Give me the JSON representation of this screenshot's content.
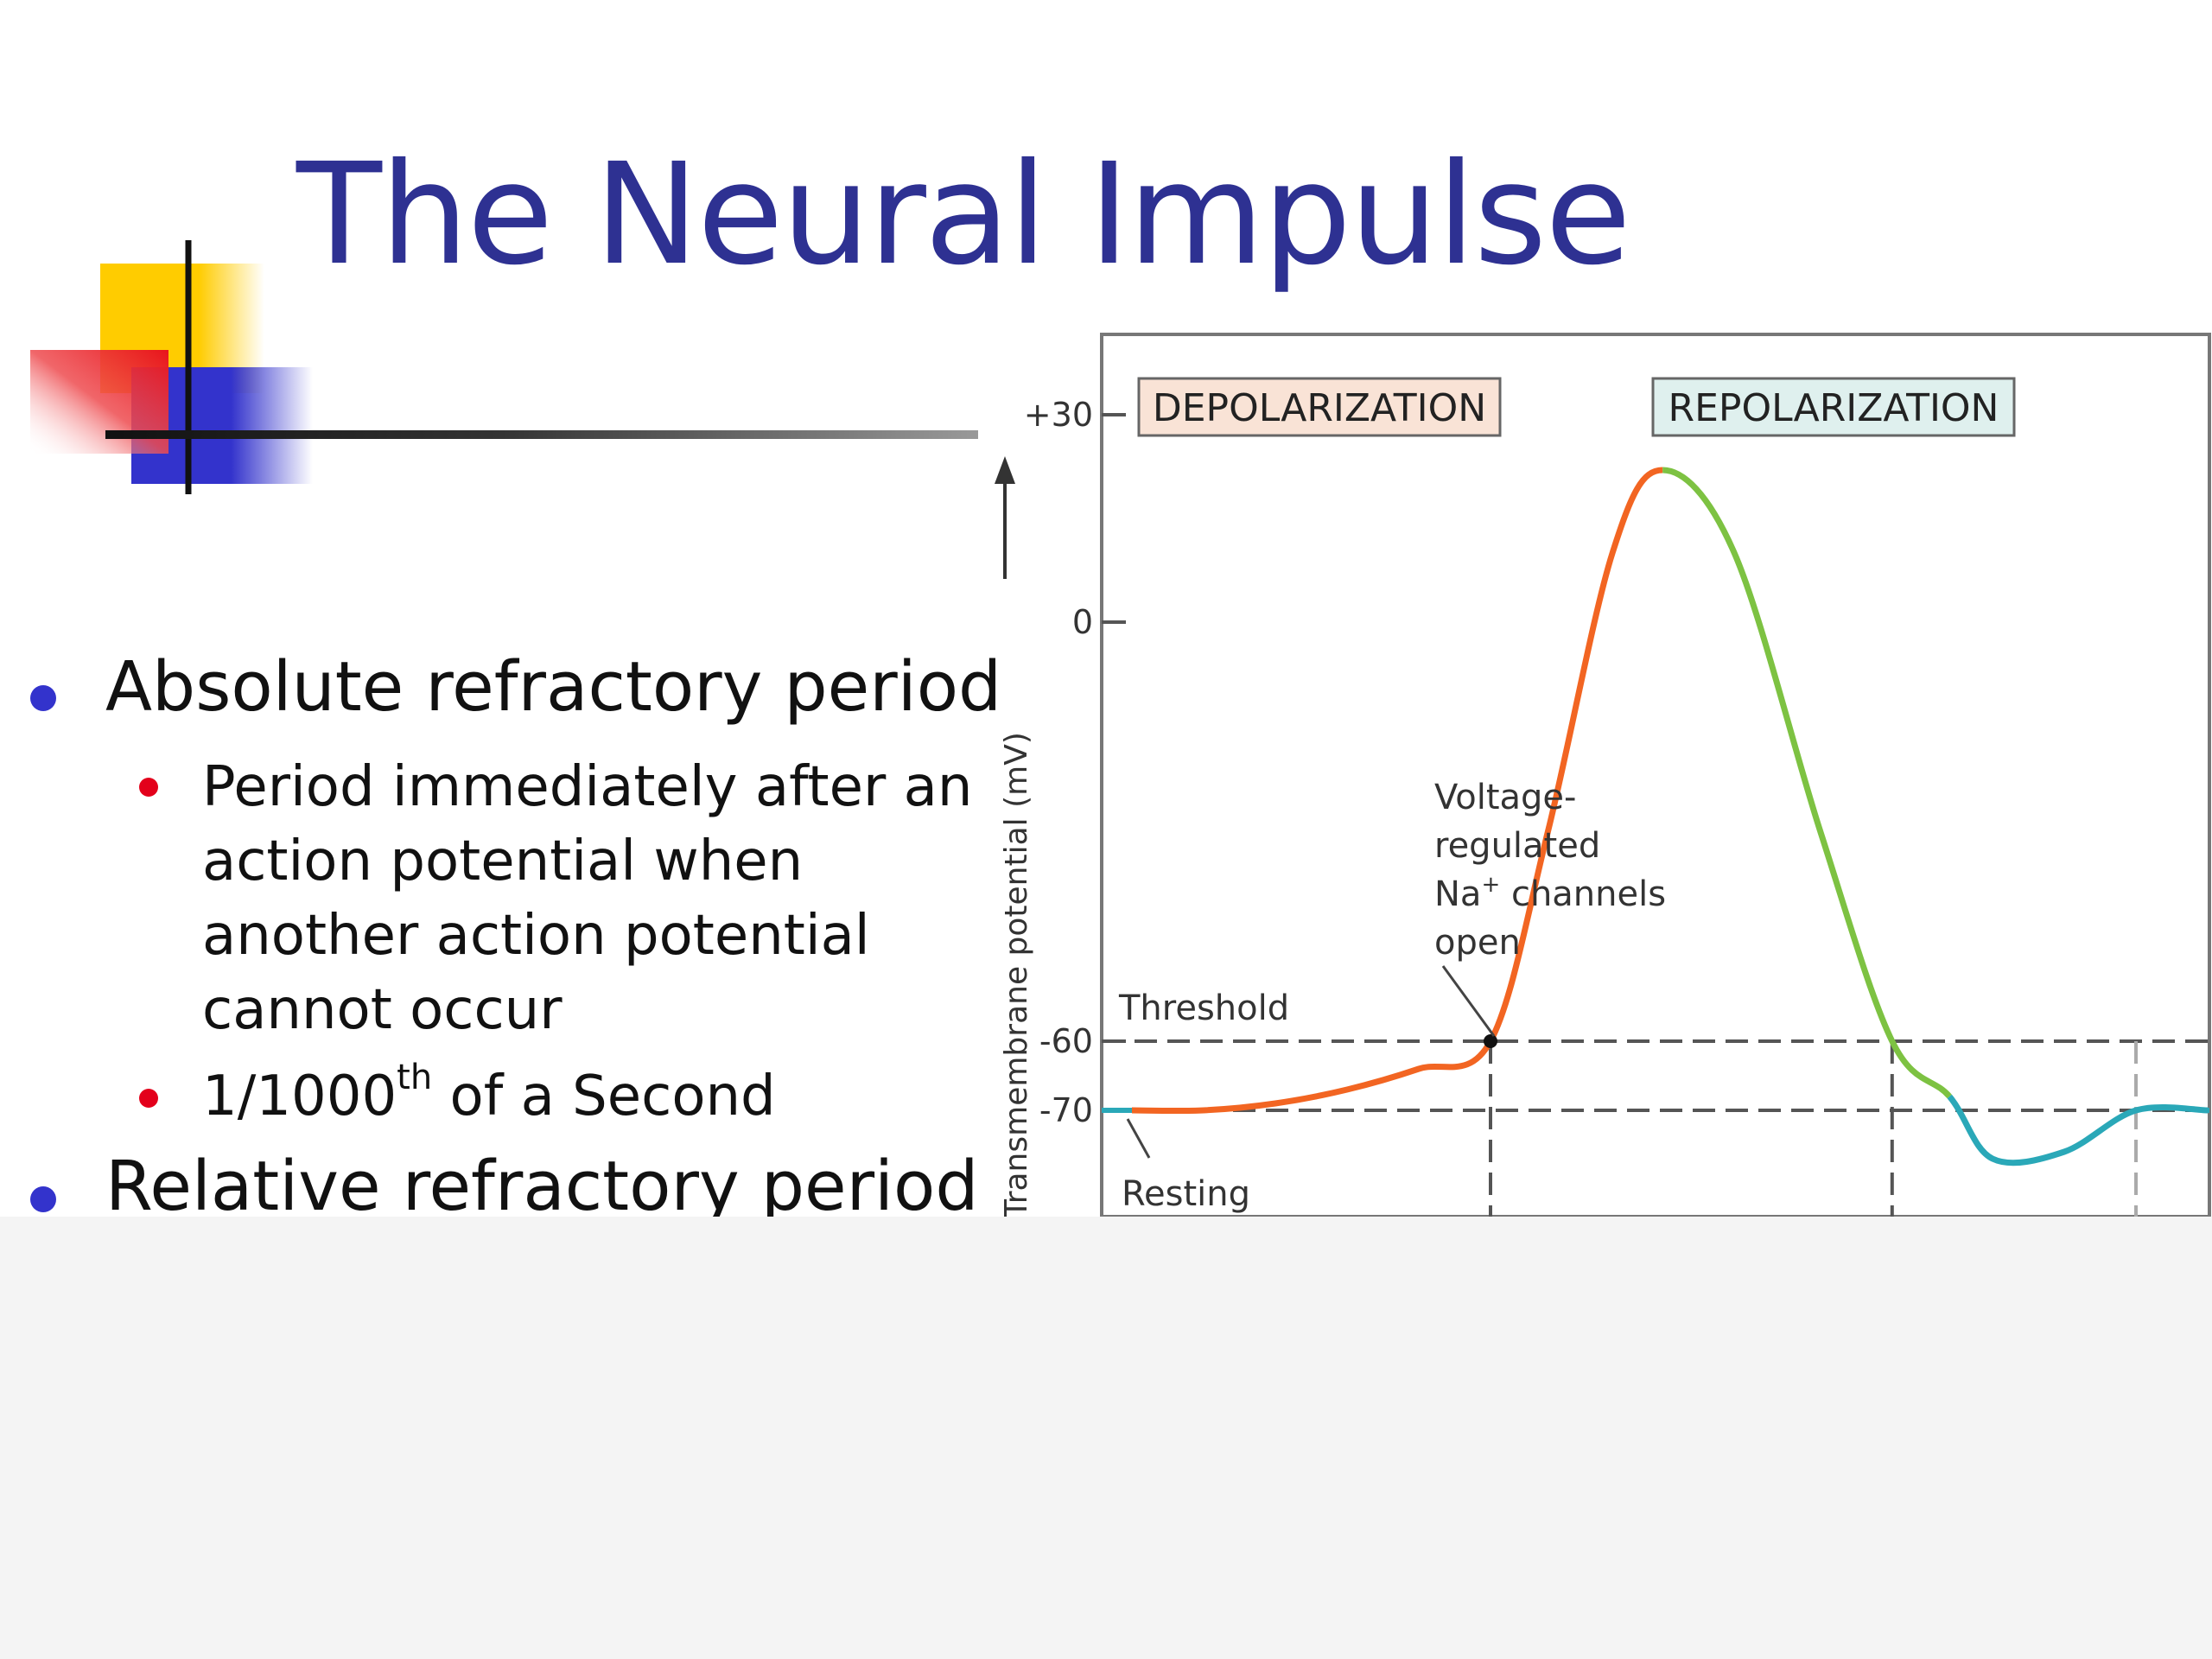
{
  "slide": {
    "title": "The Neural Impulse",
    "accent_color": "#2e3192"
  },
  "bullets": [
    {
      "text": "Absolute refractory period",
      "bullet_color": "#3333cc",
      "sub": [
        {
          "lines": [
            "Period immediately after an",
            "action potential when",
            "another action potential",
            "cannot occur"
          ]
        },
        {
          "text": "1/1000",
          "sup": "th",
          "rest": " of a Second"
        }
      ]
    },
    {
      "text": "Relative refractory period",
      "bullet_color": "#3333cc"
    }
  ],
  "chart_data": {
    "type": "line",
    "ylabel": "Transmembrane potential (mV)",
    "yticks": [
      {
        "label": "+30",
        "value": 30
      },
      {
        "label": "0",
        "value": 0
      },
      {
        "label": "-60",
        "value": -60
      },
      {
        "label": "-70",
        "value": -70
      }
    ],
    "phase_labels": [
      "DEPOLARIZATION",
      "REPOLARIZATION"
    ],
    "annotations": {
      "threshold": "Threshold",
      "resting": "Resting",
      "voltage_lines": [
        "Voltage-",
        "regulated",
        "Na",
        " channels",
        "open"
      ],
      "voltage_sup": "+"
    },
    "series": [
      {
        "color_rest": "#2aa8b8",
        "color_depol": "#f26522",
        "color_repol": "#7dc242",
        "x": [
          0,
          0.5,
          1.0,
          1.5,
          2.0,
          2.5,
          2.9,
          3.35,
          3.7,
          4.2,
          4.8,
          5.3,
          5.7,
          6.0,
          6.5,
          7.0,
          7.5
        ],
        "y": [
          -70,
          -70,
          -69,
          -67,
          -64,
          -60,
          -30,
          10,
          22,
          10,
          -30,
          -60,
          -68,
          -77,
          -76,
          -70,
          -70
        ]
      }
    ],
    "threshold_value": -60,
    "resting_value": -70
  }
}
